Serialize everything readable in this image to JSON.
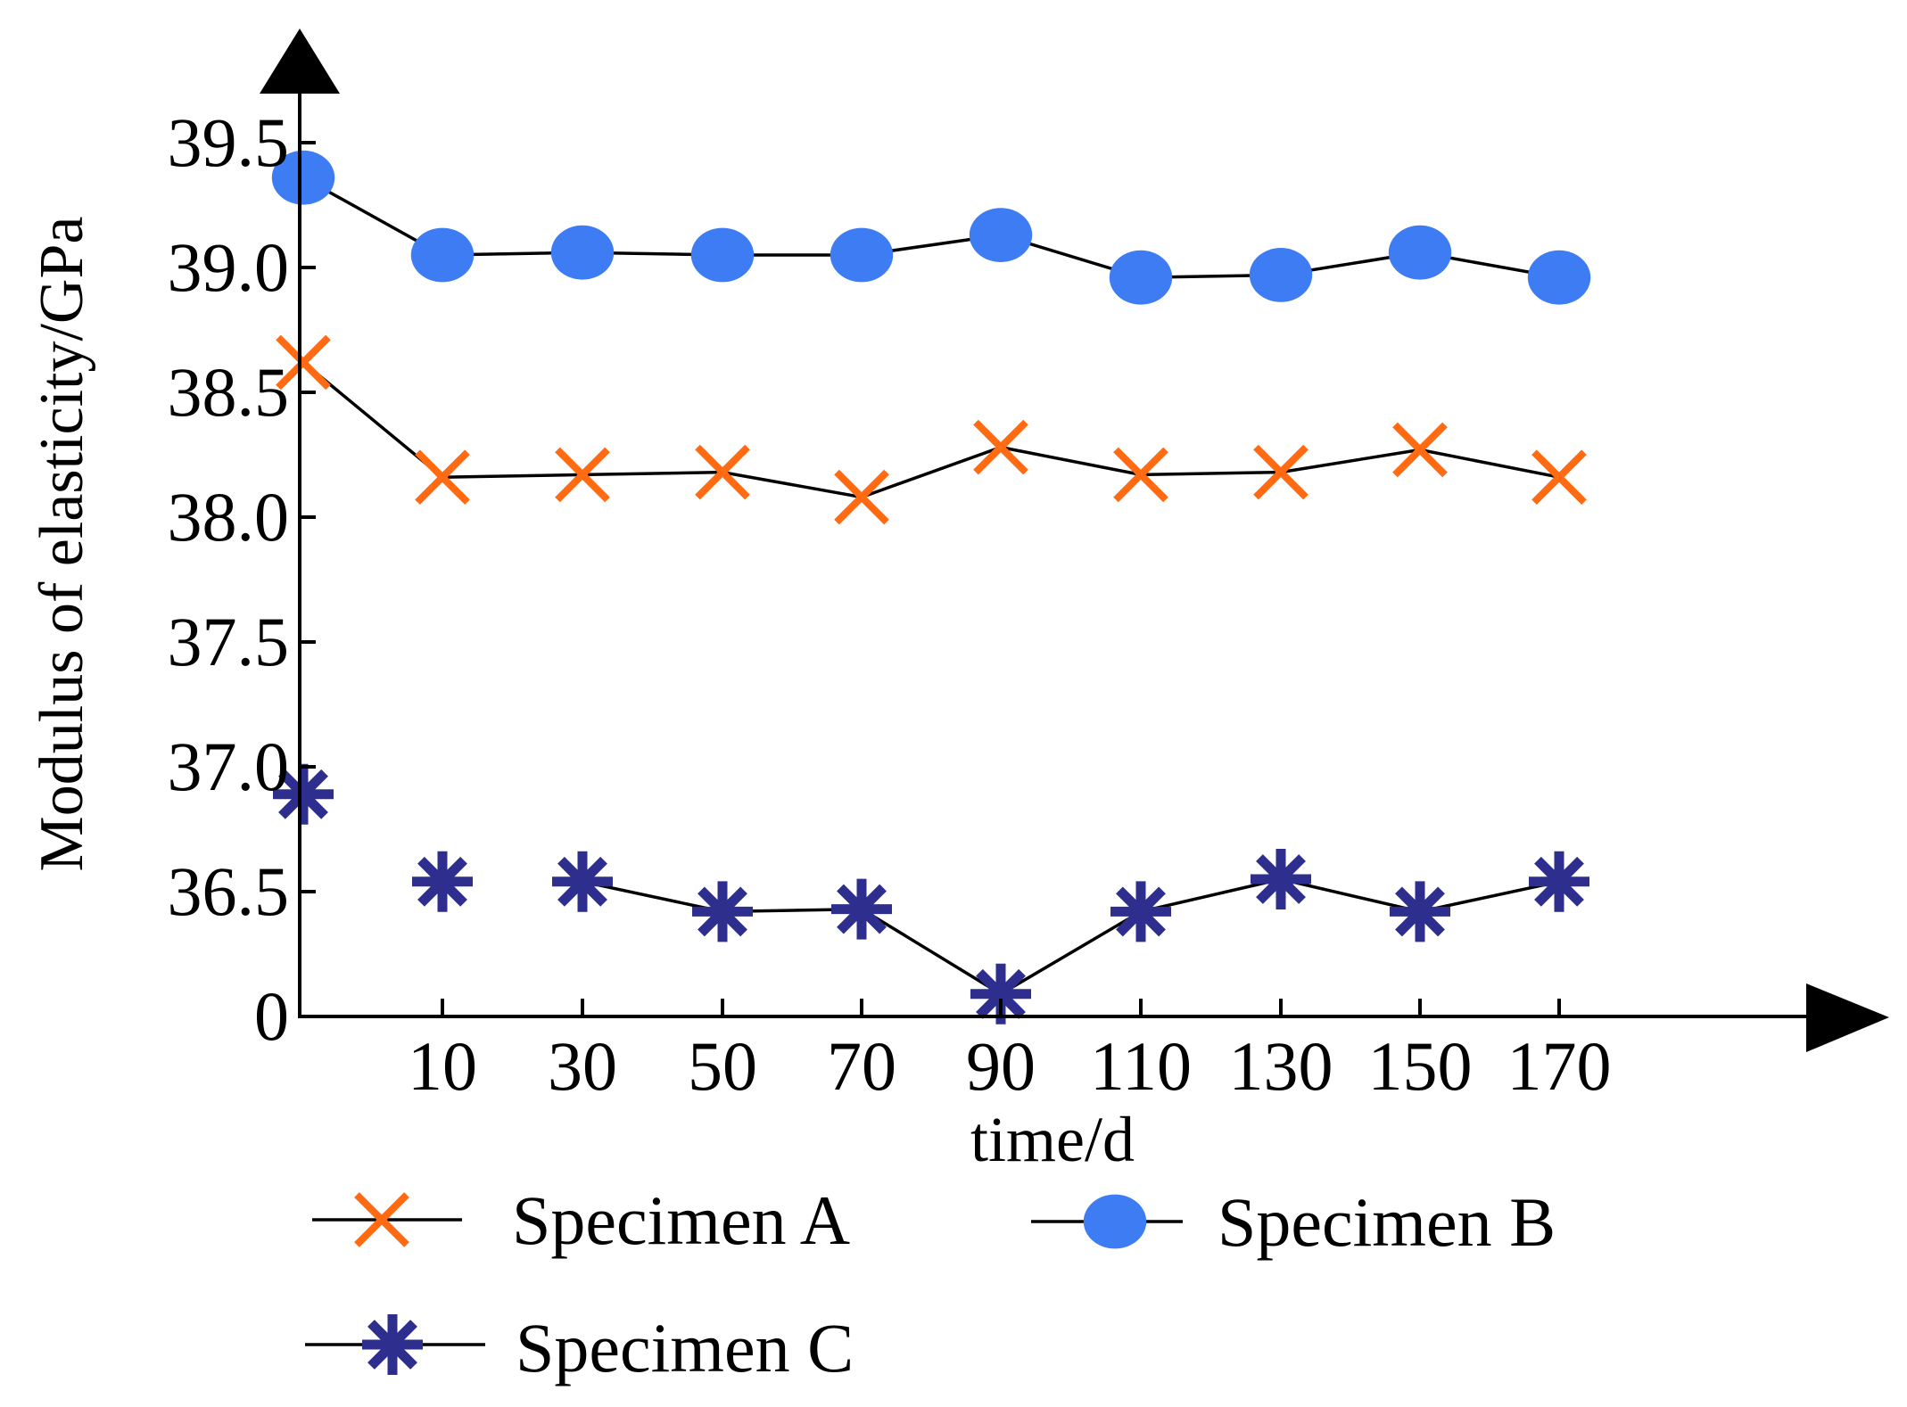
{
  "chart_data": {
    "type": "line",
    "xlabel": "time/d",
    "ylabel": "Modulus of elasticity/GPa",
    "x_tick_labels": [
      "10",
      "30",
      "50",
      "70",
      "90",
      "110",
      "130",
      "150",
      "170"
    ],
    "y_tick_labels": [
      "0",
      "36.5",
      "37.0",
      "37.5",
      "38.0",
      "38.5",
      "39.0",
      "39.5"
    ],
    "y_axis_note": "broken axis: bottom tick labelled 0, upper ticks from 36.5 to 39.5 in steps of 0.5",
    "categories": [
      "0",
      "10",
      "30",
      "50",
      "70",
      "90",
      "110",
      "130",
      "150",
      "170"
    ],
    "series": [
      {
        "name": "Specimen A",
        "marker": "x",
        "color": "#ff6a13",
        "values": [
          38.62,
          38.16,
          38.17,
          38.18,
          38.08,
          38.28,
          38.17,
          38.18,
          38.27,
          38.16
        ]
      },
      {
        "name": "Specimen B",
        "marker": "circle",
        "color": "#3d7cf2",
        "values": [
          39.36,
          39.05,
          39.06,
          39.05,
          39.05,
          39.13,
          38.96,
          38.97,
          39.06,
          38.96
        ]
      },
      {
        "name": "Specimen C",
        "marker": "asterisk",
        "color": "#2e2e8f",
        "line_from_index": 2,
        "values": [
          36.89,
          36.54,
          36.54,
          36.42,
          36.43,
          36.09,
          36.42,
          36.55,
          36.42,
          36.54
        ]
      }
    ],
    "legend": {
      "position": "bottom",
      "entries": [
        "Specimen A",
        "Specimen B",
        "Specimen C"
      ]
    }
  }
}
